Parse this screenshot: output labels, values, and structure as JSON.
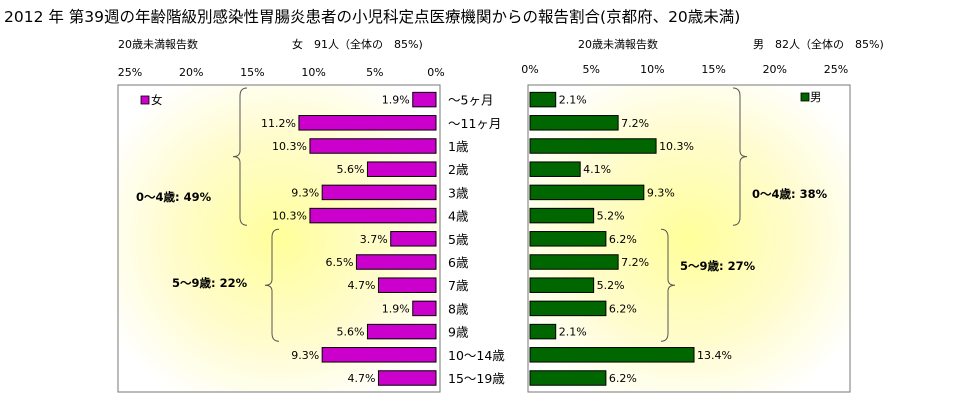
{
  "title": "2012 年 第39週の年齢階級別感染性胃腸炎患者の小児科定点医療機関からの報告割合(京都府、20歳未満)",
  "left_panel": {
    "header": "20歳未満報告数",
    "summary": "女　91人（全体の　85%)",
    "legend": "女",
    "color": "#cc00cc",
    "groups": [
      {
        "label": "0〜4歳: 49%"
      },
      {
        "label": "5〜9歳: 22%"
      }
    ]
  },
  "right_panel": {
    "header": "20歳未満報告数",
    "summary": "男　82人（全体の　85%)",
    "legend": "男",
    "color": "#006600",
    "groups": [
      {
        "label": "0〜4歳: 38%"
      },
      {
        "label": "5〜9歳: 27%"
      }
    ]
  },
  "chart_data": [
    {
      "type": "bar",
      "orientation": "horizontal",
      "direction": "reversed",
      "series_name": "女",
      "categories": [
        "〜5ヶ月",
        "〜11ヶ月",
        "1歳",
        "2歳",
        "3歳",
        "4歳",
        "5歳",
        "6歳",
        "7歳",
        "8歳",
        "9歳",
        "10〜14歳",
        "15〜19歳"
      ],
      "values": [
        1.9,
        11.2,
        10.3,
        5.6,
        9.3,
        10.3,
        3.7,
        6.5,
        4.7,
        1.9,
        5.6,
        9.3,
        4.7
      ],
      "value_labels": [
        "1.9%",
        "11.2%",
        "10.3%",
        "5.6%",
        "9.3%",
        "10.3%",
        "3.7%",
        "6.5%",
        "4.7%",
        "1.9%",
        "5.6%",
        "9.3%",
        "4.7%"
      ],
      "xlim": [
        0,
        25
      ],
      "ticks": [
        "0%",
        "5%",
        "10%",
        "15%",
        "20%",
        "25%"
      ],
      "legend_position": "top-left"
    },
    {
      "type": "bar",
      "orientation": "horizontal",
      "series_name": "男",
      "categories": [
        "〜5ヶ月",
        "〜11ヶ月",
        "1歳",
        "2歳",
        "3歳",
        "4歳",
        "5歳",
        "6歳",
        "7歳",
        "8歳",
        "9歳",
        "10〜14歳",
        "15〜19歳"
      ],
      "values": [
        2.1,
        7.2,
        10.3,
        4.1,
        9.3,
        5.2,
        6.2,
        7.2,
        5.2,
        6.2,
        2.1,
        13.4,
        6.2
      ],
      "value_labels": [
        "2.1%",
        "7.2%",
        "10.3%",
        "4.1%",
        "9.3%",
        "5.2%",
        "6.2%",
        "7.2%",
        "5.2%",
        "6.2%",
        "2.1%",
        "13.4%",
        "6.2%"
      ],
      "xlim": [
        0,
        25
      ],
      "ticks": [
        "0%",
        "5%",
        "10%",
        "15%",
        "20%",
        "25%"
      ],
      "legend_position": "top-right"
    }
  ]
}
